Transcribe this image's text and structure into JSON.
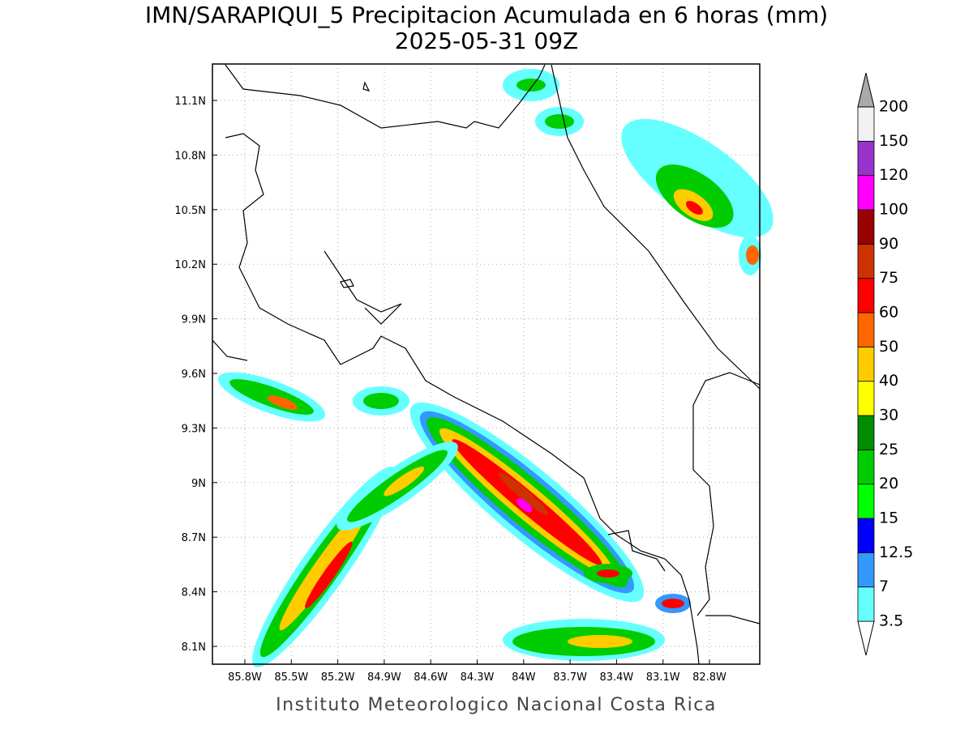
{
  "map": {
    "title": "IMN/SARAPIQUI_5 Precipitacion Acumulada en 6 horas (mm)",
    "subtitle": "2025-05-31 09Z",
    "lat_ticks": [
      "11.1N",
      "10.8N",
      "10.5N",
      "10.2N",
      "9.9N",
      "9.6N",
      "9.3N",
      "9N",
      "8.7N",
      "8.4N",
      "8.1N"
    ],
    "lon_ticks": [
      "85.8W",
      "85.5W",
      "85.2W",
      "84.9W",
      "84.6W",
      "84.3W",
      "84W",
      "83.7W",
      "83.4W",
      "83.1W",
      "82.8W"
    ],
    "credit": "Instituto Meteorologico Nacional Costa Rica",
    "colorbar": {
      "levels": [
        3.5,
        7,
        12.5,
        15,
        20,
        25,
        30,
        40,
        50,
        60,
        75,
        90,
        100,
        120,
        150,
        200
      ],
      "colors": [
        "#66ffff",
        "#3399ff",
        "#0000ff",
        "#00ff00",
        "#00cc00",
        "#008c00",
        "#ffff00",
        "#ffcc00",
        "#ff6600",
        "#ff0000",
        "#cc3300",
        "#990000",
        "#ff00ff",
        "#9933cc",
        "#f2f2f2"
      ],
      "under_color": "#ffffff",
      "over_color": "#aaaaaa"
    }
  }
}
